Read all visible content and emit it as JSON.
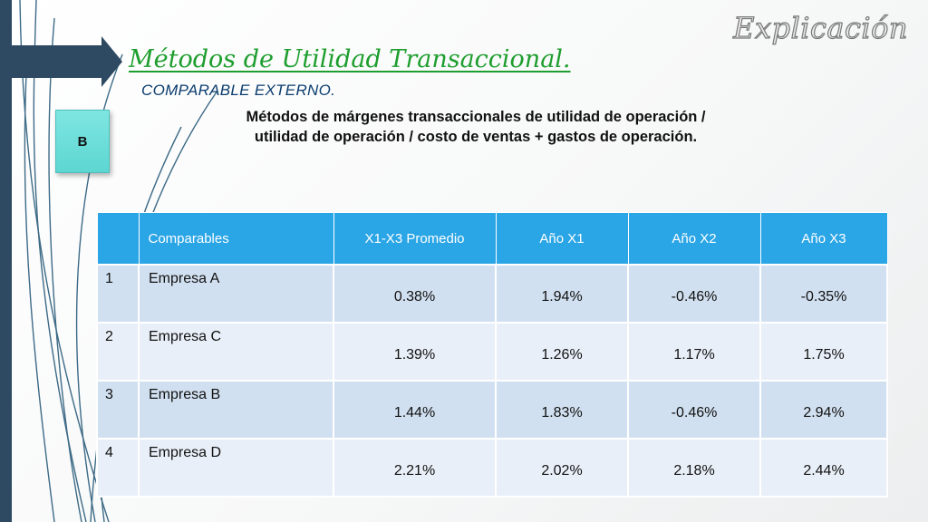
{
  "slide": {
    "brand_title": "Explicación",
    "main_title": "Métodos de Utilidad Transaccional.",
    "subtitle": "COMPARABLE EXTERNO.",
    "label": "B",
    "description": "Métodos de márgenes transaccionales de utilidad de operación / utilidad de operación / costo de ventas + gastos de operación."
  },
  "colors": {
    "title_green": "#1e9e2e",
    "subtitle_navy": "#0b3d6e",
    "header_blue": "#2aa5e6",
    "row_odd": "#d1e0f0",
    "row_even": "#e9eff8",
    "label_teal": "#5dd6d2",
    "left_bar": "#2e4a62"
  },
  "table": {
    "headers": [
      "",
      "Comparables",
      "X1-X3 Promedio",
      "Año X1",
      "Año X2",
      "Año X3"
    ],
    "rows": [
      {
        "index": "1",
        "name": "Empresa A",
        "promedio": "0.38%",
        "x1": "1.94%",
        "x2": "-0.46%",
        "x3": "-0.35%"
      },
      {
        "index": "2",
        "name": "Empresa C",
        "promedio": "1.39%",
        "x1": "1.26%",
        "x2": "1.17%",
        "x3": "1.75%"
      },
      {
        "index": "3",
        "name": "Empresa B",
        "promedio": "1.44%",
        "x1": "1.83%",
        "x2": "-0.46%",
        "x3": "2.94%"
      },
      {
        "index": "4",
        "name": "Empresa D",
        "promedio": "2.21%",
        "x1": "2.02%",
        "x2": "2.18%",
        "x3": "2.44%"
      }
    ]
  }
}
